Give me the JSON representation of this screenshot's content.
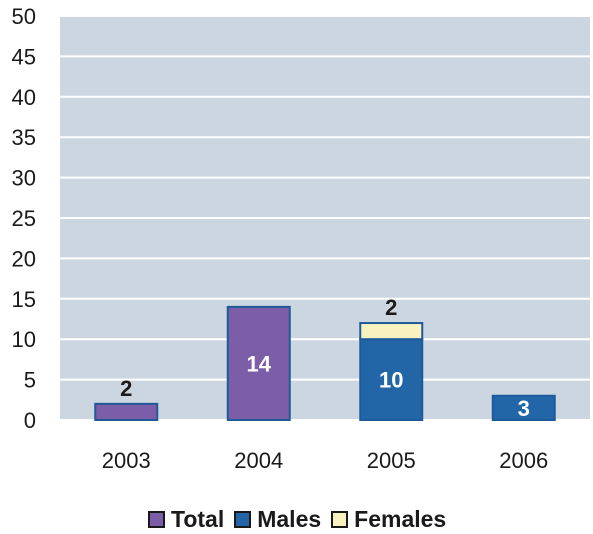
{
  "chart_data": {
    "type": "bar",
    "categories": [
      "2003",
      "2004",
      "2005",
      "2006"
    ],
    "series": [
      {
        "name": "Total",
        "color": "#7b5ea7",
        "values": [
          2,
          14,
          null,
          null
        ]
      },
      {
        "name": "Males",
        "color": "#2266a8",
        "values": [
          null,
          null,
          10,
          3
        ]
      },
      {
        "name": "Females",
        "color": "#f7f2c0",
        "values": [
          null,
          null,
          2,
          null
        ]
      }
    ],
    "stacked": true,
    "data_labels": [
      {
        "category": "2003",
        "series": "Total",
        "text": "2",
        "position": "above"
      },
      {
        "category": "2004",
        "series": "Total",
        "text": "14",
        "position": "inside"
      },
      {
        "category": "2005",
        "series": "Males",
        "text": "10",
        "position": "inside"
      },
      {
        "category": "2005",
        "series": "Females",
        "text": "2",
        "position": "above"
      },
      {
        "category": "2006",
        "series": "Males",
        "text": "3",
        "position": "inside"
      }
    ],
    "y_ticks": [
      "0",
      "5",
      "10",
      "15",
      "20",
      "25",
      "30",
      "35",
      "40",
      "45",
      "50"
    ],
    "ylim": [
      0,
      50
    ],
    "grid": true,
    "plot_background": "#ccd6e0",
    "legend_position": "bottom",
    "title": "",
    "xlabel": "",
    "ylabel": ""
  },
  "legend": [
    {
      "label": "Total",
      "color": "#7b5ea7"
    },
    {
      "label": "Males",
      "color": "#2266a8"
    },
    {
      "label": "Females",
      "color": "#f7f2c0"
    }
  ]
}
